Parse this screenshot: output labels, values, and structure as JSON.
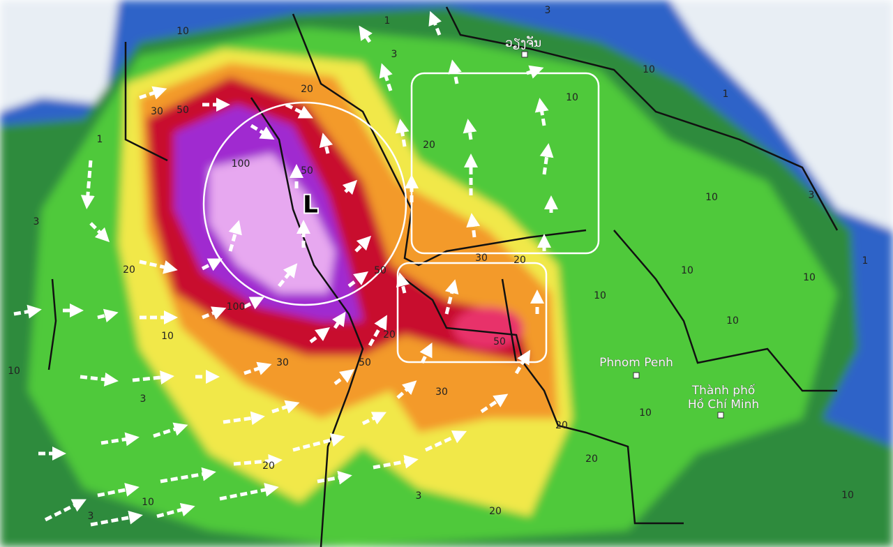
{
  "map": {
    "low_label": "L",
    "places": [
      "ວຽງຈັນ",
      "Phnom Penh",
      "Thành phố",
      "Hồ Chí Minh"
    ],
    "contour_labels": [
      "10",
      "20",
      "30",
      "50",
      "100",
      "50",
      "1",
      "3",
      "20",
      "100",
      "10",
      "10",
      "3",
      "30",
      "50",
      "50",
      "20",
      "30",
      "50",
      "20",
      "30",
      "20",
      "10",
      "10",
      "1",
      "10",
      "3",
      "10",
      "10",
      "10",
      "10",
      "1",
      "20",
      "20",
      "10",
      "20",
      "10",
      "3",
      "20",
      "3",
      "10",
      "3",
      "3",
      "1"
    ]
  }
}
